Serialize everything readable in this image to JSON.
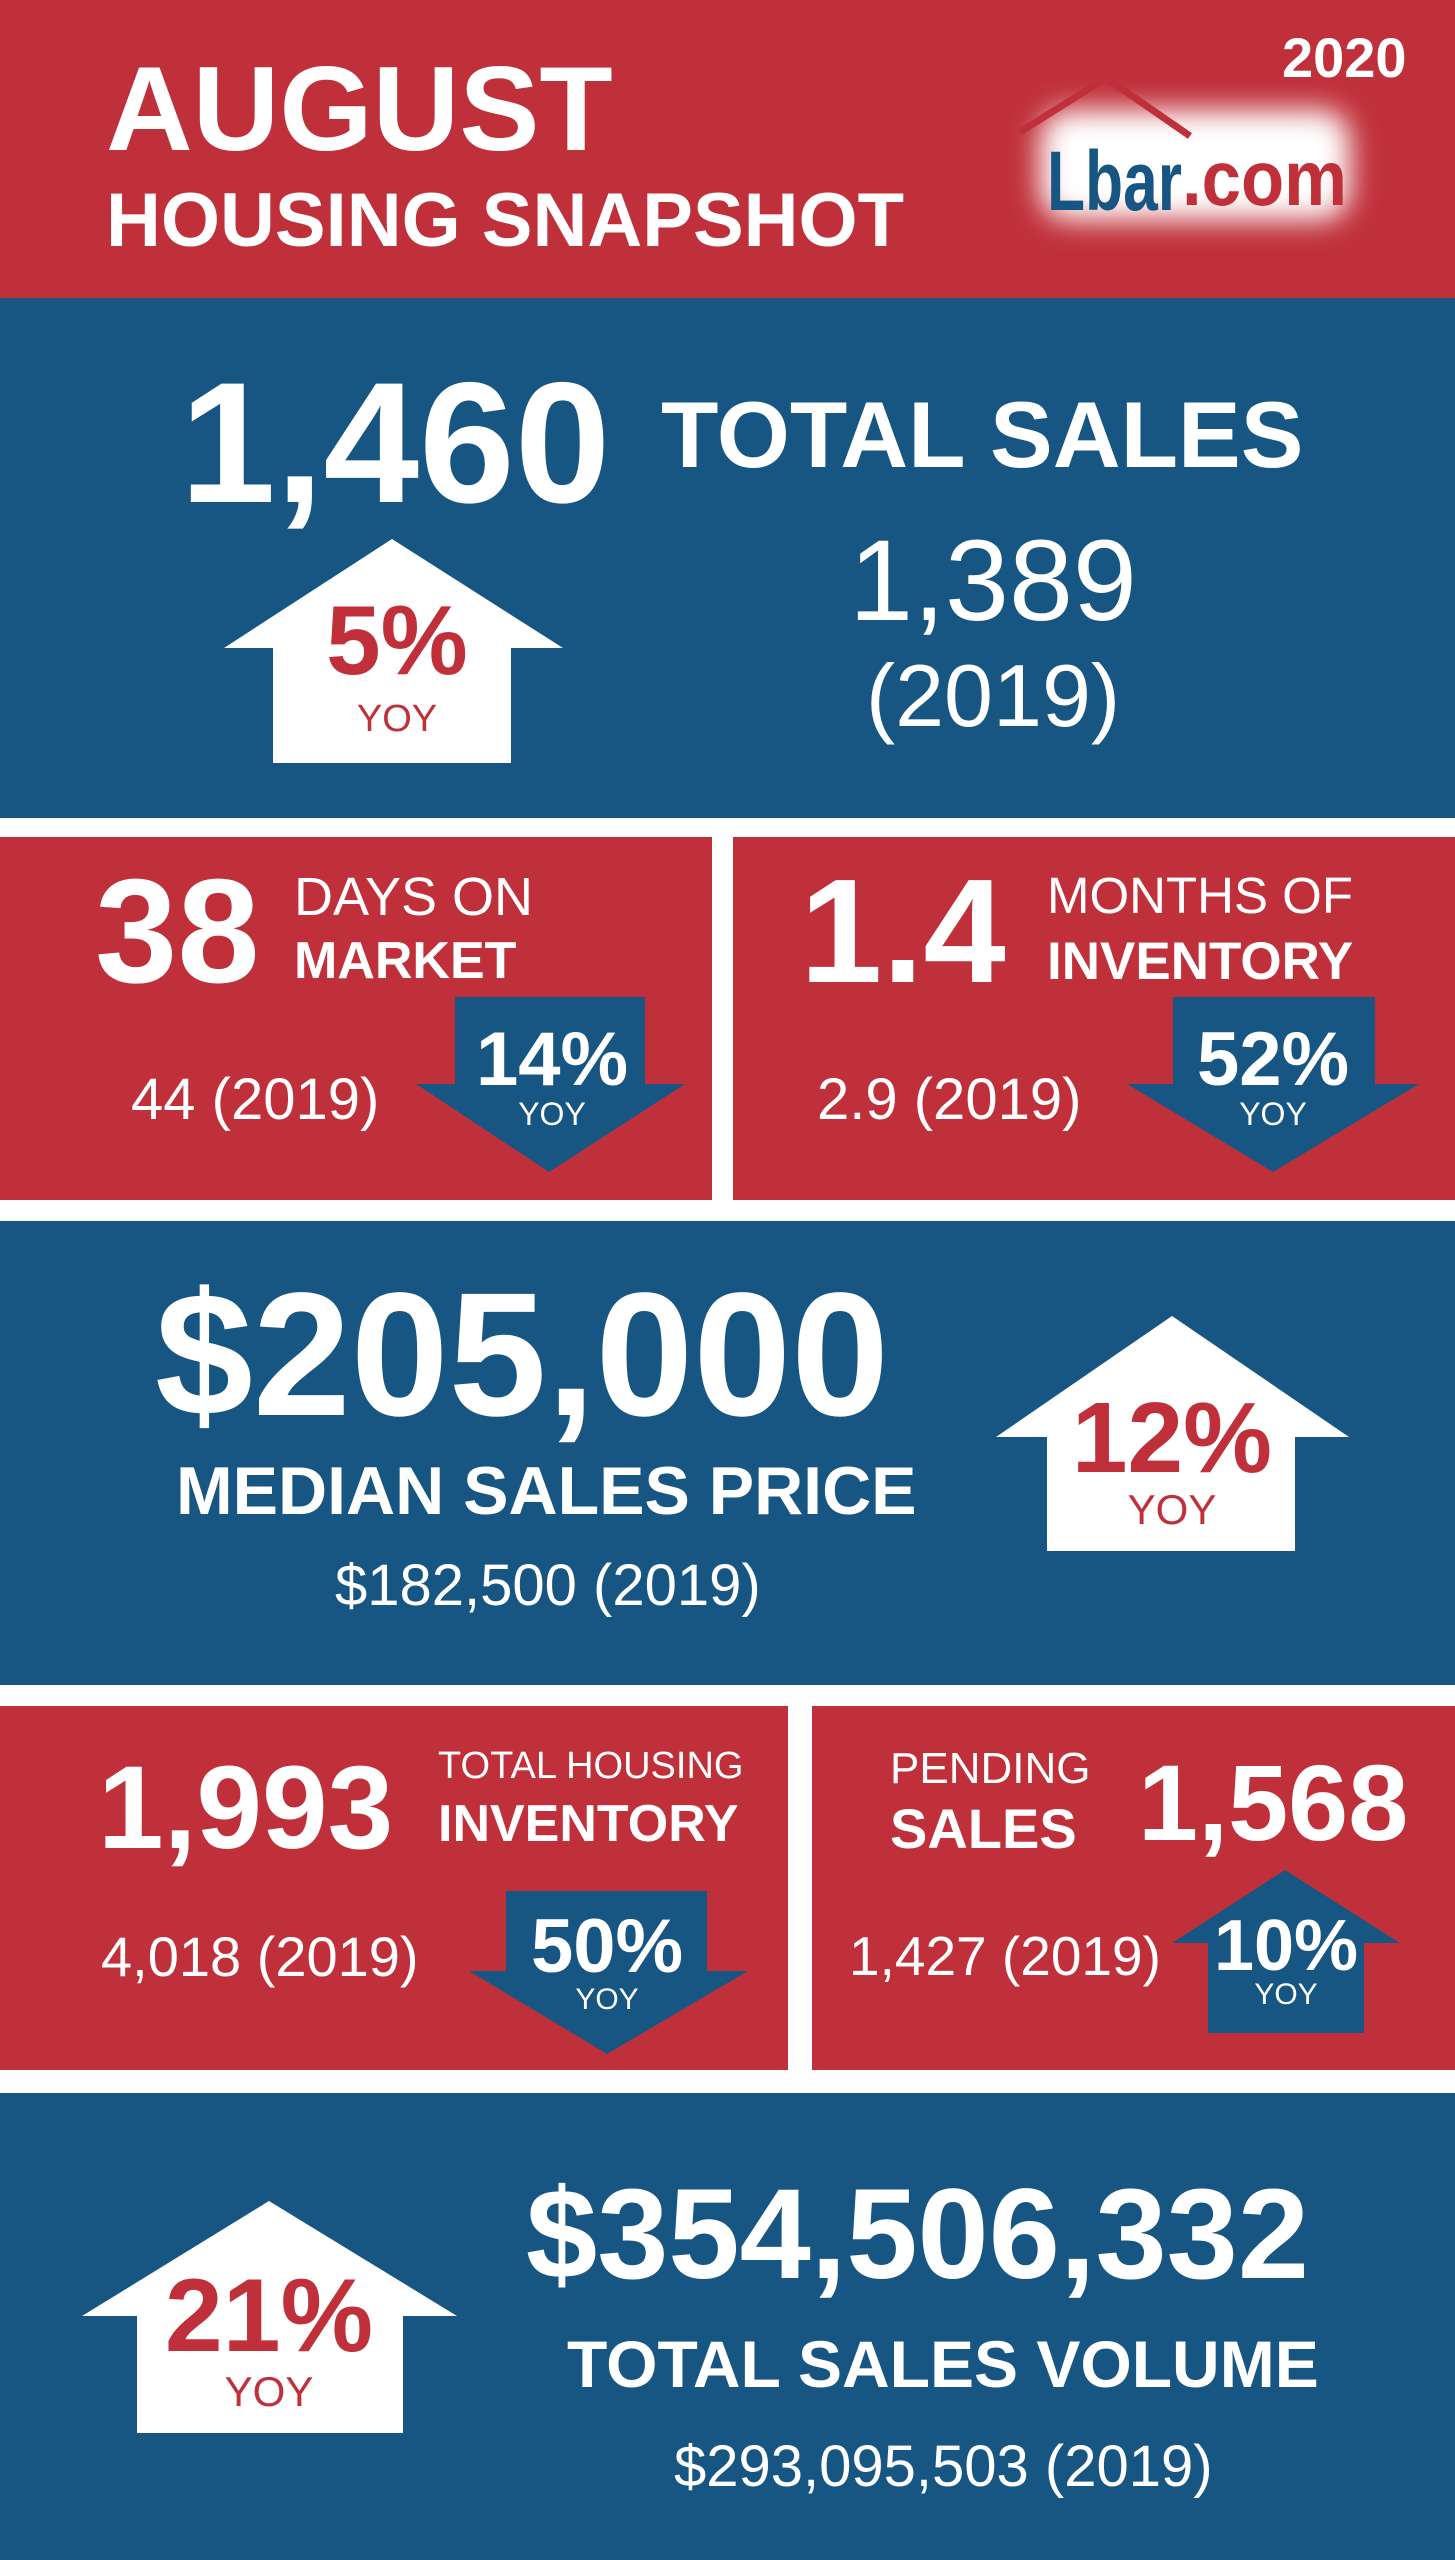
{
  "colors": {
    "red": "#c0303a",
    "blue": "#175683",
    "white": "#ffffff"
  },
  "header": {
    "month": "AUGUST",
    "subtitle": "HOUSING SNAPSHOT",
    "year": "2020",
    "logo": {
      "text_blue": "Lbar",
      "text_red": ".com",
      "icon": "house-roof-icon"
    }
  },
  "total_sales": {
    "value": "1,460",
    "label": "TOTAL SALES",
    "prior_value": "1,389",
    "prior_year": "(2019)",
    "change": "5%",
    "change_label": "YOY",
    "direction": "up"
  },
  "days_on_market": {
    "value": "38",
    "label_line1": "DAYS ON",
    "label_line2": "MARKET",
    "prior": "44 (2019)",
    "change": "14%",
    "change_label": "YOY",
    "direction": "down"
  },
  "months_inventory": {
    "value": "1.4",
    "label_line1": "MONTHS OF",
    "label_line2": "INVENTORY",
    "prior": "2.9 (2019)",
    "change": "52%",
    "change_label": "YOY",
    "direction": "down"
  },
  "median_price": {
    "value": "$205,000",
    "label": "MEDIAN SALES PRICE",
    "prior": "$182,500 (2019)",
    "change": "12%",
    "change_label": "YOY",
    "direction": "up"
  },
  "housing_inventory": {
    "value": "1,993",
    "label_line1": "TOTAL HOUSING",
    "label_line2": "INVENTORY",
    "prior": "4,018 (2019)",
    "change": "50%",
    "change_label": "YOY",
    "direction": "down"
  },
  "pending_sales": {
    "value": "1,568",
    "label_line1": "PENDING",
    "label_line2": "SALES",
    "prior": "1,427 (2019)",
    "change": "10%",
    "change_label": "YOY",
    "direction": "up"
  },
  "sales_volume": {
    "value": "$354,506,332",
    "label": "TOTAL SALES VOLUME",
    "prior": "$293,095,503 (2019)",
    "change": "21%",
    "change_label": "YOY",
    "direction": "up"
  }
}
